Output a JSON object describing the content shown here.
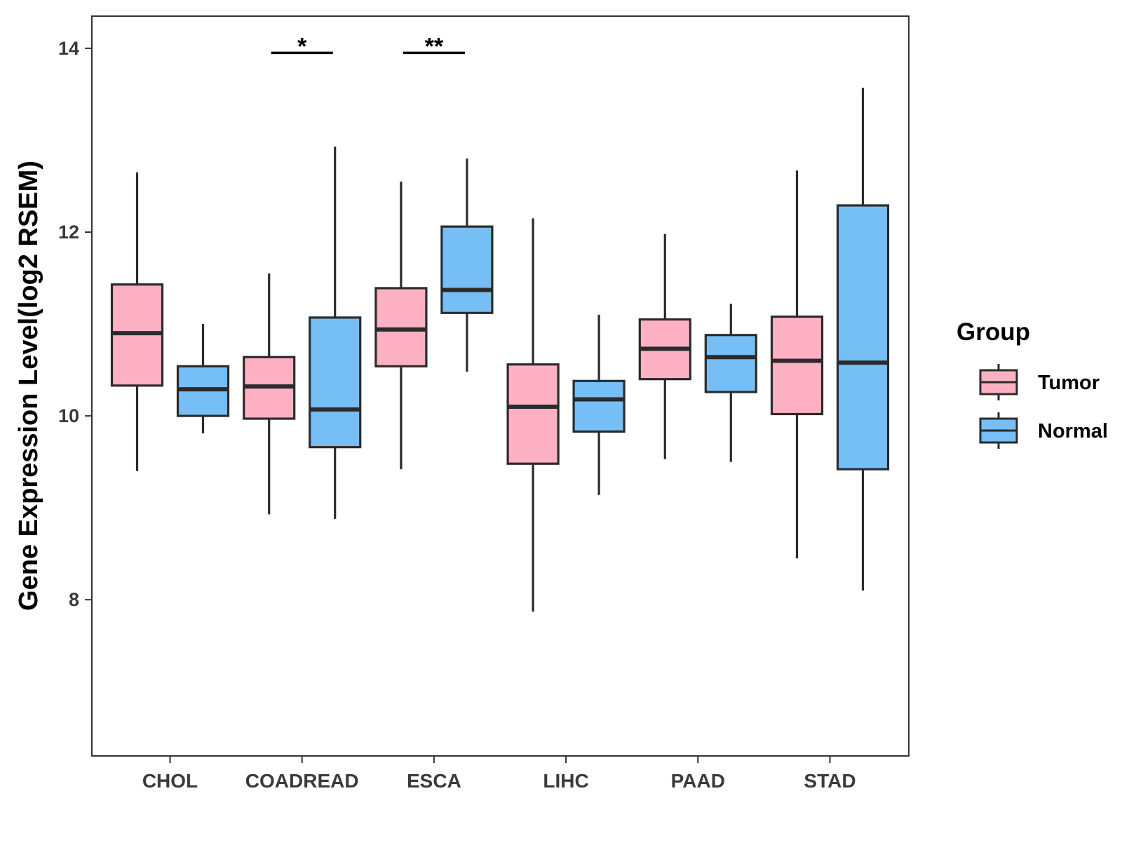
{
  "chart_data": {
    "type": "boxplot",
    "title": "",
    "xlabel": "",
    "ylabel": "Gene Expression Level(log2 RSEM)",
    "ylim": [
      6.3,
      14.35
    ],
    "yticks": [
      8,
      10,
      12,
      14
    ],
    "ytick_labels": [
      "8",
      "10",
      "12",
      "14"
    ],
    "grid": false,
    "categories": [
      "CHOL",
      "COADREAD",
      "ESCA",
      "LIHC",
      "PAAD",
      "STAD"
    ],
    "legend": {
      "title": "Group",
      "position": "right",
      "entries": [
        "Tumor",
        "Normal"
      ]
    },
    "series": [
      {
        "name": "Tumor",
        "color": "#FFB1C4",
        "boxes": [
          {
            "category": "CHOL",
            "min": 9.4,
            "q1": 10.33,
            "median": 10.9,
            "q3": 11.43,
            "max": 12.65
          },
          {
            "category": "COADREAD",
            "min": 8.93,
            "q1": 9.97,
            "median": 10.32,
            "q3": 10.64,
            "max": 11.55
          },
          {
            "category": "ESCA",
            "min": 9.42,
            "q1": 10.54,
            "median": 10.94,
            "q3": 11.39,
            "max": 12.55
          },
          {
            "category": "LIHC",
            "min": 7.87,
            "q1": 9.48,
            "median": 10.1,
            "q3": 10.56,
            "max": 12.15
          },
          {
            "category": "PAAD",
            "min": 9.53,
            "q1": 10.4,
            "median": 10.73,
            "q3": 11.05,
            "max": 11.98
          },
          {
            "category": "STAD",
            "min": 8.45,
            "q1": 10.02,
            "median": 10.6,
            "q3": 11.08,
            "max": 12.67
          }
        ]
      },
      {
        "name": "Normal",
        "color": "#76BFF6",
        "boxes": [
          {
            "category": "CHOL",
            "min": 9.81,
            "q1": 10.0,
            "median": 10.29,
            "q3": 10.54,
            "max": 11.0
          },
          {
            "category": "COADREAD",
            "min": 8.88,
            "q1": 9.66,
            "median": 10.07,
            "q3": 11.07,
            "max": 12.93
          },
          {
            "category": "ESCA",
            "min": 10.48,
            "q1": 11.12,
            "median": 11.37,
            "q3": 12.06,
            "max": 12.8
          },
          {
            "category": "LIHC",
            "min": 9.14,
            "q1": 9.83,
            "median": 10.18,
            "q3": 10.38,
            "max": 11.1
          },
          {
            "category": "PAAD",
            "min": 9.5,
            "q1": 10.26,
            "median": 10.64,
            "q3": 10.88,
            "max": 11.22
          },
          {
            "category": "STAD",
            "min": 8.1,
            "q1": 9.42,
            "median": 10.58,
            "q3": 12.29,
            "max": 13.57
          }
        ]
      }
    ],
    "annotations": [
      {
        "category": "COADREAD",
        "label": "*",
        "y": 13.95
      },
      {
        "category": "ESCA",
        "label": "**",
        "y": 13.95
      }
    ]
  }
}
